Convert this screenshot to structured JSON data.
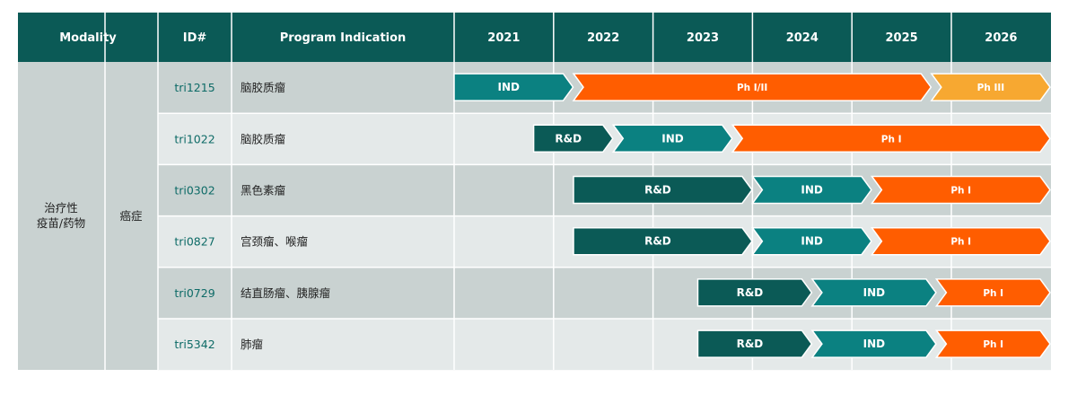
{
  "chart_data": {
    "type": "gantt",
    "headers": {
      "modality": "Modality",
      "id": "ID#",
      "indication": "Program Indication"
    },
    "years": [
      "2021",
      "2022",
      "2023",
      "2024",
      "2025",
      "2026"
    ],
    "modality_group": [
      "治疗性",
      "疫苗/药物"
    ],
    "category": "癌症",
    "phase_colors": {
      "R&D": "#0b5a56",
      "IND": "#0b8181",
      "Ph I": "#ff5d00",
      "Ph I/II": "#ff5d00",
      "Ph III": "#f7a831"
    },
    "programs": [
      {
        "id": "tri1215",
        "indication": "脑胶质瘤",
        "phases": [
          {
            "label": "IND",
            "start": 2021.0,
            "end": 2022.2
          },
          {
            "label": "Ph I/II",
            "start": 2022.2,
            "end": 2025.8
          },
          {
            "label": "Ph III",
            "start": 2025.8,
            "end": 2027.0
          }
        ]
      },
      {
        "id": "tri1022",
        "indication": "脑胶质瘤",
        "phases": [
          {
            "label": "R&D",
            "start": 2021.8,
            "end": 2022.6
          },
          {
            "label": "IND",
            "start": 2022.6,
            "end": 2023.8
          },
          {
            "label": "Ph I",
            "start": 2023.8,
            "end": 2027.0
          }
        ]
      },
      {
        "id": "tri0302",
        "indication": "黑色素瘤",
        "phases": [
          {
            "label": "R&D",
            "start": 2022.2,
            "end": 2024.0
          },
          {
            "label": "IND",
            "start": 2024.0,
            "end": 2025.2
          },
          {
            "label": "Ph I",
            "start": 2025.2,
            "end": 2027.0
          }
        ]
      },
      {
        "id": "tri0827",
        "indication": "宫颈瘤、喉瘤",
        "phases": [
          {
            "label": "R&D",
            "start": 2022.2,
            "end": 2024.0
          },
          {
            "label": "IND",
            "start": 2024.0,
            "end": 2025.2
          },
          {
            "label": "Ph I",
            "start": 2025.2,
            "end": 2027.0
          }
        ]
      },
      {
        "id": "tri0729",
        "indication": "结直肠瘤、胰腺瘤",
        "phases": [
          {
            "label": "R&D",
            "start": 2023.45,
            "end": 2024.6
          },
          {
            "label": "IND",
            "start": 2024.6,
            "end": 2025.85
          },
          {
            "label": "Ph I",
            "start": 2025.85,
            "end": 2027.0
          }
        ]
      },
      {
        "id": "tri5342",
        "indication": "肺瘤",
        "phases": [
          {
            "label": "R&D",
            "start": 2023.45,
            "end": 2024.6
          },
          {
            "label": "IND",
            "start": 2024.6,
            "end": 2025.85
          },
          {
            "label": "Ph I",
            "start": 2025.85,
            "end": 2027.0
          }
        ]
      }
    ]
  }
}
